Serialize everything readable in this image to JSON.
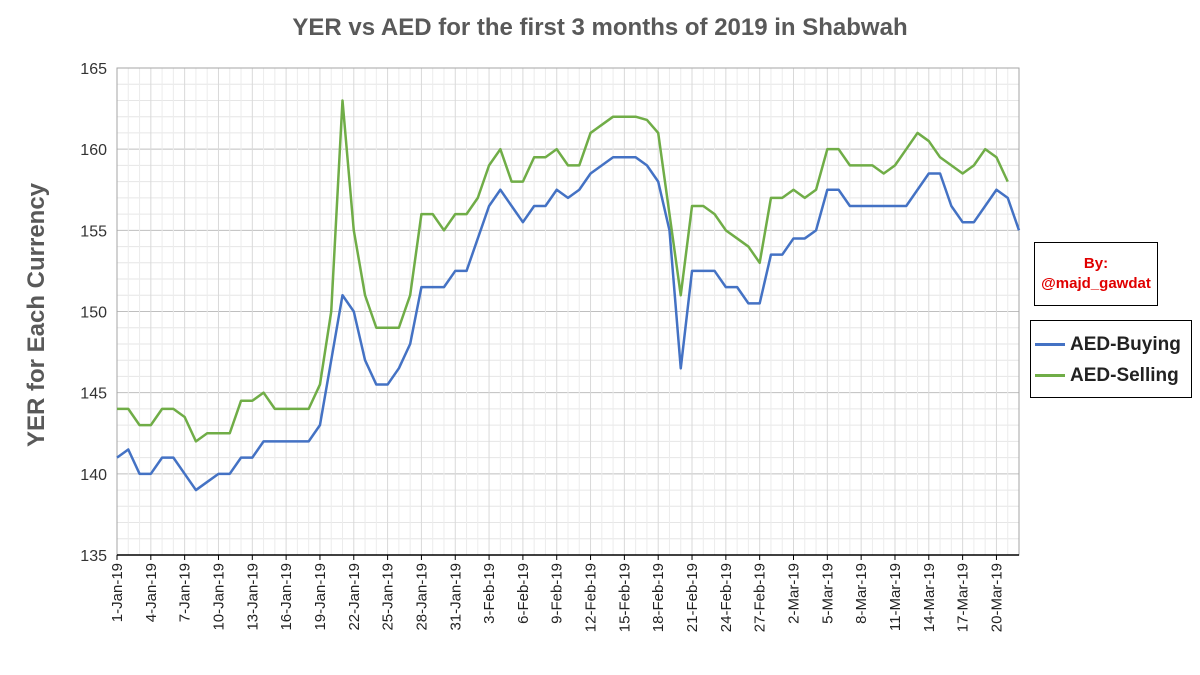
{
  "chart_data": {
    "type": "line",
    "title": "YER vs AED for the first 3 months of 2019 in Shabwah",
    "ylabel": "YER for Each Currency",
    "xlabel": "",
    "ylim": [
      135,
      165
    ],
    "yticks": [
      135,
      140,
      145,
      150,
      155,
      160,
      165
    ],
    "grid": true,
    "legend_position": "right",
    "x_tick_labels": [
      "1-Jan-19",
      "4-Jan-19",
      "7-Jan-19",
      "10-Jan-19",
      "13-Jan-19",
      "16-Jan-19",
      "19-Jan-19",
      "22-Jan-19",
      "25-Jan-19",
      "28-Jan-19",
      "31-Jan-19",
      "3-Feb-19",
      "6-Feb-19",
      "9-Feb-19",
      "12-Feb-19",
      "15-Feb-19",
      "18-Feb-19",
      "21-Feb-19",
      "24-Feb-19",
      "27-Feb-19",
      "2-Mar-19",
      "5-Mar-19",
      "8-Mar-19",
      "11-Mar-19",
      "14-Mar-19",
      "17-Mar-19",
      "20-Mar-19"
    ],
    "series": [
      {
        "name": "AED-Buying",
        "color": "#4472C4",
        "values": [
          141,
          141.5,
          140,
          140,
          141,
          141,
          140,
          139,
          139.5,
          140,
          140,
          141,
          141,
          142,
          142,
          142,
          142,
          142,
          143,
          147,
          151,
          150,
          147,
          145.5,
          145.5,
          146.5,
          148,
          151.5,
          151.5,
          151.5,
          152.5,
          152.5,
          154.5,
          156.5,
          157.5,
          156.5,
          155.5,
          156.5,
          156.5,
          157.5,
          157,
          157.5,
          158.5,
          159,
          159.5,
          159.5,
          159.5,
          159,
          158,
          155,
          146.5,
          152.5,
          152.5,
          152.5,
          151.5,
          151.5,
          150.5,
          150.5,
          153.5,
          153.5,
          154.5,
          154.5,
          155,
          157.5,
          157.5,
          156.5,
          156.5,
          156.5,
          156.5,
          156.5,
          156.5,
          157.5,
          158.5,
          158.5,
          156.5,
          155.5,
          155.5,
          156.5,
          157.5,
          157,
          155
        ]
      },
      {
        "name": "AED-Selling",
        "color": "#70AD47",
        "values": [
          144,
          144,
          143,
          143,
          144,
          144,
          143.5,
          142,
          142.5,
          142.5,
          142.5,
          144.5,
          144.5,
          145,
          144,
          144,
          144,
          144,
          145.5,
          150,
          163,
          155,
          151,
          149,
          149,
          149,
          151,
          156,
          156,
          155,
          156,
          156,
          157,
          159,
          160,
          158,
          158,
          159.5,
          159.5,
          160,
          159,
          159,
          161,
          161.5,
          162,
          162,
          162,
          161.8,
          161,
          156,
          151,
          156.5,
          156.5,
          156,
          155,
          154.5,
          154,
          153,
          157,
          157,
          157.5,
          157,
          157.5,
          160,
          160,
          159,
          159,
          159,
          158.5,
          159,
          160,
          161,
          160.5,
          159.5,
          159,
          158.5,
          159,
          160,
          159.5,
          158
        ]
      }
    ]
  },
  "credit": {
    "line1": "By:",
    "line2": "@majd_gawdat"
  }
}
